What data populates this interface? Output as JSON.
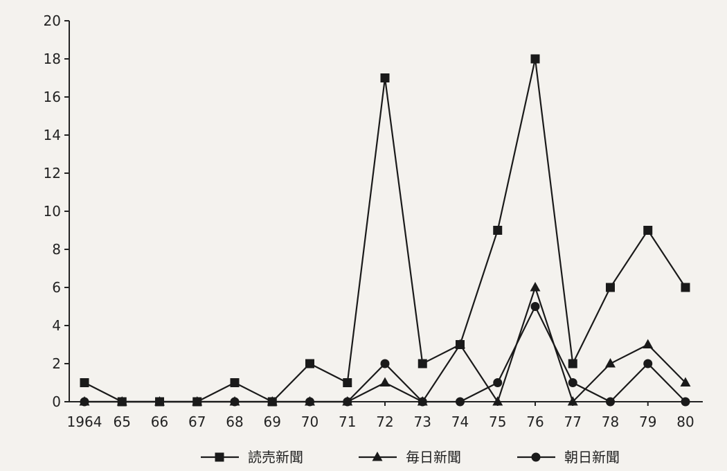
{
  "chart_data": {
    "type": "line",
    "title": "",
    "xlabel": "",
    "ylabel": "",
    "x": [
      "1964",
      "65",
      "66",
      "67",
      "68",
      "69",
      "70",
      "71",
      "72",
      "73",
      "74",
      "75",
      "76",
      "77",
      "78",
      "79",
      "80"
    ],
    "ylim": [
      0,
      20
    ],
    "yticks": [
      0,
      2,
      4,
      6,
      8,
      10,
      12,
      14,
      16,
      18,
      20
    ],
    "grid": false,
    "legend_position": "bottom",
    "series": [
      {
        "name": "読売新聞",
        "marker": "square",
        "color": "#1a1a1a",
        "values": [
          1,
          0,
          0,
          0,
          1,
          0,
          2,
          1,
          17,
          2,
          3,
          9,
          18,
          2,
          6,
          9,
          6
        ]
      },
      {
        "name": "毎日新聞",
        "marker": "triangle",
        "color": "#1a1a1a",
        "values": [
          0,
          0,
          0,
          0,
          0,
          0,
          0,
          0,
          1,
          0,
          3,
          0,
          6,
          0,
          2,
          3,
          1
        ]
      },
      {
        "name": "朝日新聞",
        "marker": "circle",
        "color": "#1a1a1a",
        "values": [
          0,
          0,
          0,
          0,
          0,
          0,
          0,
          0,
          2,
          0,
          0,
          1,
          5,
          1,
          0,
          2,
          0
        ]
      }
    ]
  }
}
